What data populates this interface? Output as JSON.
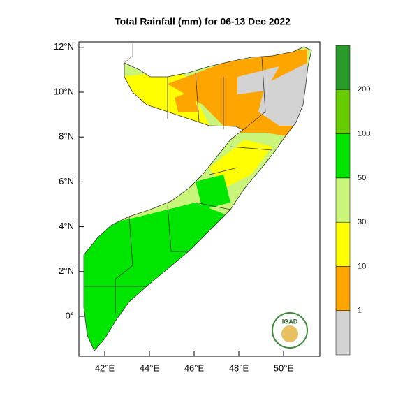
{
  "title": "Total Rainfall (mm) for 06-13 Dec 2022",
  "lat_ticks": [
    {
      "value": 12,
      "label": "12°N"
    },
    {
      "value": 10,
      "label": "10°N"
    },
    {
      "value": 8,
      "label": "8°N"
    },
    {
      "value": 6,
      "label": "6°N"
    },
    {
      "value": 4,
      "label": "4°N"
    },
    {
      "value": 2,
      "label": "2°N"
    },
    {
      "value": 0,
      "label": "0°"
    }
  ],
  "lon_ticks": [
    {
      "value": 42,
      "label": "42°E"
    },
    {
      "value": 44,
      "label": "44°E"
    },
    {
      "value": 46,
      "label": "46°E"
    },
    {
      "value": 48,
      "label": "48°E"
    },
    {
      "value": 50,
      "label": "50°E"
    }
  ],
  "colorbar": {
    "colors": [
      "#d3d3d3",
      "#ffa500",
      "#ffff00",
      "#c8f57a",
      "#00e600",
      "#66cc00",
      "#2a9a2a"
    ],
    "boundaries": [
      1,
      10,
      30,
      50,
      100,
      200
    ]
  },
  "logo": {
    "text": "IGAD"
  }
}
